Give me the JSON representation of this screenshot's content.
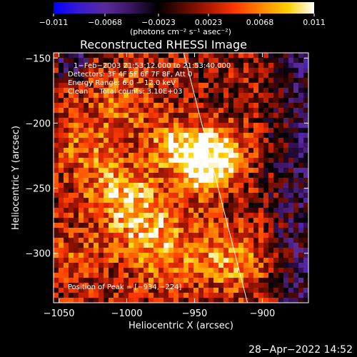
{
  "title": "Reconstructed RHESSI Image",
  "colorbar": {
    "ticks": [
      "−0.011",
      "−0.0068",
      "−0.0023",
      "0.0023",
      "0.0068",
      "0.011"
    ],
    "unit_label": "(photons cm⁻² s⁻¹ asec⁻²)"
  },
  "info": {
    "time_range": "1−Feb−2003 21:53:12.000 to 21:53:40.000",
    "detectors": "Detectors: 3F 4F 5F 6F 7F 8F, Att 0",
    "energy": "Energy Range: 6.0 − 12.0 keV",
    "clean": "Clean     Total counts: 3.10E+03",
    "peak": "Position of Peak = [−934,−224]"
  },
  "footer_date": "28−Apr−2022 14:52",
  "chart_data": {
    "type": "heatmap",
    "title": "Reconstructed RHESSI Image",
    "xlabel": "Heliocentric X (arcsec)",
    "ylabel": "Heliocentric Y (arcsec)",
    "xlim": [
      -1054,
      -866
    ],
    "ylim": [
      -338,
      -146
    ],
    "xticks": [
      -1050,
      -1000,
      -950,
      -900
    ],
    "xtick_labels": [
      "−1050",
      "−1000",
      "−950",
      "−900"
    ],
    "yticks": [
      -150,
      -200,
      -250,
      -300
    ],
    "ytick_labels": [
      "−150",
      "−200",
      "−250",
      "−300"
    ],
    "zlim": [
      -0.011,
      0.011
    ],
    "peak": [
      -934,
      -224
    ],
    "limb_line": [
      [
        -958,
        -146
      ],
      [
        -911,
        -338
      ]
    ],
    "colormap": [
      "#0000ff",
      "#3a1bd0",
      "#5a2a9a",
      "#3a1460",
      "#000000",
      "#5a0a00",
      "#b01a00",
      "#ff3a00",
      "#ff8a00",
      "#ffd000",
      "#ffffff"
    ]
  }
}
